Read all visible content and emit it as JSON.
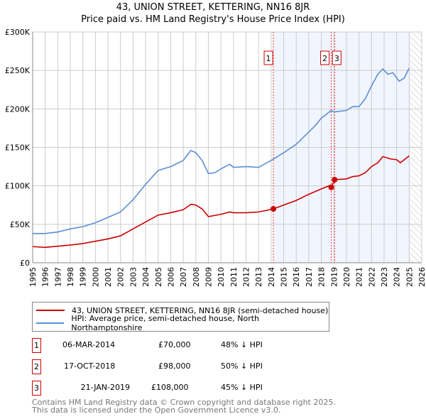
{
  "title": "43, UNION STREET, KETTERING, NN16 8JR",
  "subtitle": "Price paid vs. HM Land Registry's House Price Index (HPI)",
  "chart_data": {
    "type": "line",
    "xlim": [
      1995,
      2026
    ],
    "ylim": [
      0,
      300000
    ],
    "x_ticks": [
      "1995",
      "1996",
      "1997",
      "1998",
      "1999",
      "2000",
      "2001",
      "2002",
      "2003",
      "2004",
      "2005",
      "2006",
      "2007",
      "2008",
      "2009",
      "2010",
      "2011",
      "2012",
      "2013",
      "2014",
      "2015",
      "2016",
      "2017",
      "2018",
      "2019",
      "2020",
      "2021",
      "2022",
      "2023",
      "2024",
      "2025",
      "2026"
    ],
    "y_ticks": [
      {
        "v": 0,
        "label": "£0"
      },
      {
        "v": 50000,
        "label": "£50K"
      },
      {
        "v": 100000,
        "label": "£100K"
      },
      {
        "v": 150000,
        "label": "£150K"
      },
      {
        "v": 200000,
        "label": "£200K"
      },
      {
        "v": 250000,
        "label": "£250K"
      },
      {
        "v": 300000,
        "label": "£300K"
      }
    ],
    "grid": true,
    "shaded_range": [
      2014.18,
      2025.1
    ],
    "hatched_range": [
      2025.1,
      2026
    ],
    "series": [
      {
        "name": "43, UNION STREET, KETTERING, NN16 8JR (semi-detached house)",
        "color": "#cc0000",
        "points": [
          [
            1995,
            21000
          ],
          [
            1996,
            20000
          ],
          [
            1997,
            21500
          ],
          [
            1998,
            23000
          ],
          [
            1999,
            25000
          ],
          [
            2000,
            28000
          ],
          [
            2001,
            31000
          ],
          [
            2002,
            35000
          ],
          [
            2003,
            44000
          ],
          [
            2004,
            53000
          ],
          [
            2005,
            62000
          ],
          [
            2006,
            65000
          ],
          [
            2007,
            69000
          ],
          [
            2007.6,
            76000
          ],
          [
            2008,
            75000
          ],
          [
            2008.5,
            70000
          ],
          [
            2009,
            60000
          ],
          [
            2010,
            63000
          ],
          [
            2010.7,
            66000
          ],
          [
            2011,
            65000
          ],
          [
            2012,
            65000
          ],
          [
            2013,
            66000
          ],
          [
            2014.18,
            70000
          ],
          [
            2015,
            75000
          ],
          [
            2016,
            81000
          ],
          [
            2017,
            89000
          ],
          [
            2018,
            96000
          ],
          [
            2018.75,
            101000
          ],
          [
            2018.79,
            98000
          ],
          [
            2019.06,
            108000
          ],
          [
            2020,
            109000
          ],
          [
            2020.5,
            112000
          ],
          [
            2021,
            113000
          ],
          [
            2021.5,
            117000
          ],
          [
            2022,
            125000
          ],
          [
            2022.5,
            130000
          ],
          [
            2022.9,
            138000
          ],
          [
            2023.5,
            135000
          ],
          [
            2024,
            134000
          ],
          [
            2024.3,
            130000
          ],
          [
            2025,
            139000
          ]
        ]
      },
      {
        "name": "HPI: Average price, semi-detached house, North Northamptonshire",
        "color": "#5b8fd4",
        "points": [
          [
            1995,
            38000
          ],
          [
            1996,
            38000
          ],
          [
            1997,
            40000
          ],
          [
            1998,
            44000
          ],
          [
            1999,
            47000
          ],
          [
            2000,
            52000
          ],
          [
            2001,
            59000
          ],
          [
            2002,
            66000
          ],
          [
            2003,
            82000
          ],
          [
            2004,
            102000
          ],
          [
            2005,
            120000
          ],
          [
            2006,
            125000
          ],
          [
            2007,
            133000
          ],
          [
            2007.6,
            146000
          ],
          [
            2008,
            143000
          ],
          [
            2008.5,
            133000
          ],
          [
            2009,
            116000
          ],
          [
            2009.5,
            117000
          ],
          [
            2010,
            122000
          ],
          [
            2010.7,
            128000
          ],
          [
            2011,
            124000
          ],
          [
            2012,
            125000
          ],
          [
            2013,
            124000
          ],
          [
            2014,
            133000
          ],
          [
            2015,
            143000
          ],
          [
            2016,
            154000
          ],
          [
            2017,
            170000
          ],
          [
            2017.5,
            178000
          ],
          [
            2018,
            188000
          ],
          [
            2018.8,
            198000
          ],
          [
            2019,
            196000
          ],
          [
            2020,
            198000
          ],
          [
            2020.5,
            203000
          ],
          [
            2021,
            203000
          ],
          [
            2021.5,
            213000
          ],
          [
            2022,
            230000
          ],
          [
            2022.5,
            245000
          ],
          [
            2022.9,
            252000
          ],
          [
            2023.3,
            245000
          ],
          [
            2023.7,
            247000
          ],
          [
            2024.2,
            236000
          ],
          [
            2024.6,
            240000
          ],
          [
            2025,
            253000
          ]
        ]
      }
    ],
    "sales": [
      {
        "id": "1",
        "x": 2014.18,
        "price": 70000
      },
      {
        "id": "2",
        "x": 2018.79,
        "price": 98000
      },
      {
        "id": "3",
        "x": 2019.06,
        "price": 108000
      }
    ]
  },
  "legend": [
    "43, UNION STREET, KETTERING, NN16 8JR (semi-detached house)",
    "HPI: Average price, semi-detached house, North Northamptonshire"
  ],
  "transactions": [
    {
      "id": "1",
      "date": "06-MAR-2014",
      "price": "£70,000",
      "hpi": "48% ↓ HPI"
    },
    {
      "id": "2",
      "date": "17-OCT-2018",
      "price": "£98,000",
      "hpi": "50% ↓ HPI"
    },
    {
      "id": "3",
      "date": "21-JAN-2019",
      "price": "£108,000",
      "hpi": "45% ↓ HPI"
    }
  ],
  "footer": [
    "Contains HM Land Registry data © Crown copyright and database right 2025.",
    "This data is licensed under the Open Government Licence v3.0."
  ]
}
